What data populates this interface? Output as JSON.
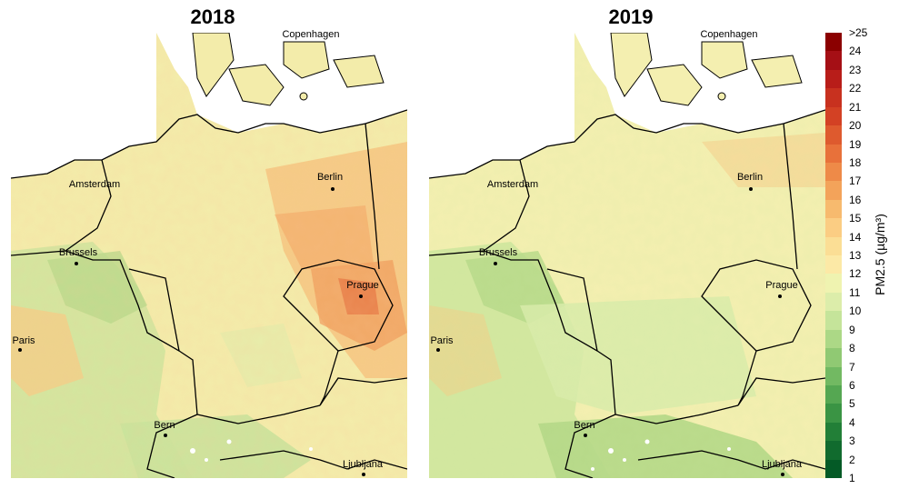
{
  "panels": [
    {
      "title": "2018"
    },
    {
      "title": "2019"
    }
  ],
  "cities": {
    "copenhagen": "Copenhagen",
    "amsterdam": "Amsterdam",
    "berlin": "Berlin",
    "brussels": "Brussels",
    "prague": "Prague",
    "paris": "Paris",
    "bern": "Bern",
    "ljubljana": "Ljubljana"
  },
  "legend": {
    "title": "PM2.5 (µg/m³)",
    "ticks": [
      ">25",
      "24",
      "23",
      "22",
      "21",
      "20",
      "19",
      "18",
      "17",
      "16",
      "15",
      "14",
      "13",
      "12",
      "11",
      "10",
      "9",
      "8",
      "7",
      "6",
      "5",
      "4",
      "3",
      "2",
      "1"
    ],
    "colors": [
      "#8b0000",
      "#a50f15",
      "#b81d19",
      "#c8311f",
      "#d34124",
      "#de5a2e",
      "#e8713a",
      "#ee8a48",
      "#f3a35a",
      "#f7ba6e",
      "#fbcd83",
      "#fbde95",
      "#fce9a6",
      "#eff3b0",
      "#dcedaa",
      "#c5e49a",
      "#acd886",
      "#90c973",
      "#72b962",
      "#55a752",
      "#3a9444",
      "#227f37",
      "#116b2e",
      "#045a26"
    ]
  }
}
